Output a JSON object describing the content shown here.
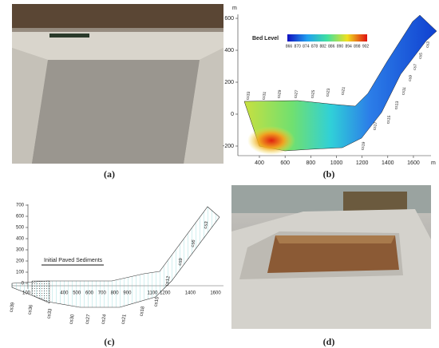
{
  "panel_a": {
    "caption": "(a)"
  },
  "panel_b": {
    "caption": "(b)",
    "x_unit": "m",
    "y_unit": "m",
    "legend_title": "Bed Level",
    "colorbar_ticks": [
      866,
      870,
      874,
      878,
      882,
      886,
      890,
      894,
      898,
      902
    ],
    "xticks": [
      400,
      600,
      800,
      1000,
      1200,
      1400,
      1600
    ],
    "yticks": [
      -200,
      0,
      200,
      400,
      600
    ],
    "sections": [
      "cs33",
      "cs31",
      "cs29",
      "cs27",
      "cs25",
      "cs23",
      "cs21",
      "cs19",
      "cs17",
      "cs15",
      "cs13",
      "cs11",
      "cs9",
      "cs7",
      "cs5",
      "cs3"
    ]
  },
  "panel_c": {
    "caption": "(c)",
    "annotation": "Initial Paved Sediments",
    "yticks": [
      0,
      100,
      200,
      300,
      400,
      500,
      600,
      700
    ],
    "xticks": [
      100,
      400,
      500,
      600,
      700,
      800,
      900,
      1100,
      1200,
      1400,
      1600
    ],
    "sections": [
      "cs39",
      "cs36",
      "cs33",
      "cs30",
      "cs27",
      "cs24",
      "cs21",
      "cs18",
      "cs15",
      "cs12",
      "cs9",
      "cs6",
      "cs3"
    ]
  },
  "panel_d": {
    "caption": "(d)"
  }
}
